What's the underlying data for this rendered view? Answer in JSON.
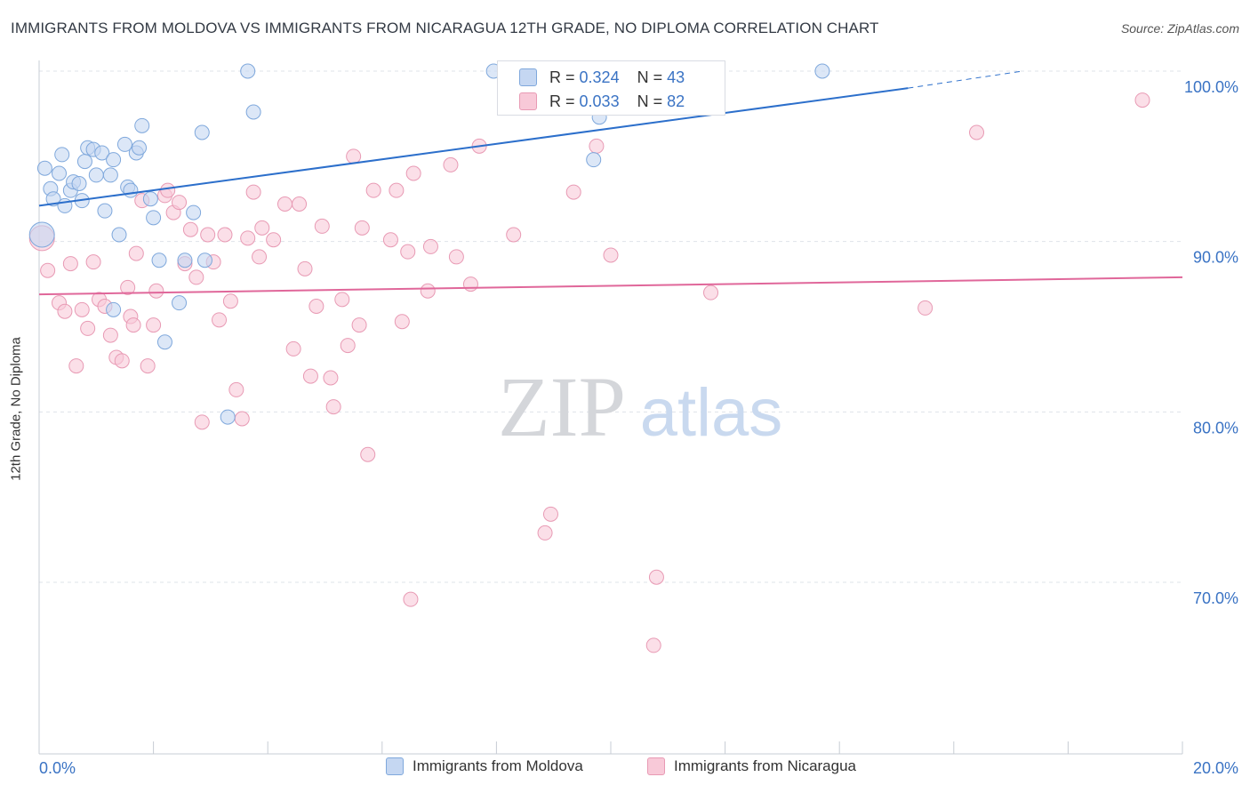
{
  "header": {
    "title": "IMMIGRANTS FROM MOLDOVA VS IMMIGRANTS FROM NICARAGUA 12TH GRADE, NO DIPLOMA CORRELATION CHART",
    "source": "Source: ZipAtlas.com"
  },
  "watermark": {
    "zip": "ZIP",
    "atlas": "atlas"
  },
  "stats_legend": [
    {
      "r_label": "R =",
      "r_value": "0.324",
      "n_label": "N =",
      "n_value": "43"
    },
    {
      "r_label": "R =",
      "r_value": "0.033",
      "n_label": "N =",
      "n_value": "82"
    }
  ],
  "colors": {
    "moldova_fill": "#c5d7f2",
    "moldova_stroke": "#7fa8dc",
    "moldova_line": "#2c6fcb",
    "nicaragua_fill": "#f8c9d8",
    "nicaragua_stroke": "#e89ab4",
    "nicaragua_line": "#e0679a",
    "axis_label": "#3a73c4",
    "grid": "#dfe3ea"
  },
  "chart_data": {
    "type": "scatter",
    "title": "IMMIGRANTS FROM MOLDOVA VS IMMIGRANTS FROM NICARAGUA 12TH GRADE, NO DIPLOMA CORRELATION CHART",
    "xlabel": "",
    "ylabel": "12th Grade, No Diploma",
    "xlim": [
      0,
      20
    ],
    "ylim": [
      60,
      101.5
    ],
    "x_tick_labels": [
      "0.0%",
      "20.0%"
    ],
    "y_ticks": [
      70,
      80,
      90,
      100
    ],
    "y_tick_labels": [
      "70.0%",
      "80.0%",
      "90.0%",
      "100.0%"
    ],
    "legend_position": "bottom",
    "series": [
      {
        "name": "Immigrants from Moldova",
        "r": 0.324,
        "n": 43,
        "trend": {
          "x0": 0,
          "y0": 92.1,
          "x1": 15.2,
          "y1": 99.0,
          "dash_to_x": 17.2,
          "dash_to_y": 100.0
        },
        "points": [
          [
            0.05,
            90.4
          ],
          [
            0.1,
            94.3
          ],
          [
            0.2,
            93.1
          ],
          [
            0.25,
            92.5
          ],
          [
            0.35,
            94.0
          ],
          [
            0.4,
            95.1
          ],
          [
            0.45,
            92.1
          ],
          [
            0.55,
            93.0
          ],
          [
            0.6,
            93.5
          ],
          [
            0.7,
            93.4
          ],
          [
            0.75,
            92.4
          ],
          [
            0.8,
            94.7
          ],
          [
            0.85,
            95.5
          ],
          [
            0.95,
            95.4
          ],
          [
            1.0,
            93.9
          ],
          [
            1.1,
            95.2
          ],
          [
            1.15,
            91.8
          ],
          [
            1.25,
            93.9
          ],
          [
            1.3,
            94.8
          ],
          [
            1.4,
            90.4
          ],
          [
            1.5,
            95.7
          ],
          [
            1.55,
            93.2
          ],
          [
            1.6,
            93.0
          ],
          [
            1.7,
            95.2
          ],
          [
            1.75,
            95.5
          ],
          [
            1.8,
            96.8
          ],
          [
            1.95,
            92.5
          ],
          [
            2.0,
            91.4
          ],
          [
            2.1,
            88.9
          ],
          [
            2.2,
            84.1
          ],
          [
            2.45,
            86.4
          ],
          [
            2.55,
            88.9
          ],
          [
            2.7,
            91.7
          ],
          [
            2.85,
            96.4
          ],
          [
            2.9,
            88.9
          ],
          [
            3.3,
            79.7
          ],
          [
            3.65,
            100.0
          ],
          [
            3.75,
            97.6
          ],
          [
            1.3,
            86.0
          ],
          [
            7.95,
            100.0
          ],
          [
            9.8,
            97.3
          ],
          [
            9.7,
            94.8
          ],
          [
            13.7,
            100.0
          ]
        ]
      },
      {
        "name": "Immigrants from Nicaragua",
        "r": 0.033,
        "n": 82,
        "trend": {
          "x0": 0,
          "y0": 86.9,
          "x1": 20,
          "y1": 87.9
        },
        "points": [
          [
            0.05,
            90.2
          ],
          [
            0.15,
            88.3
          ],
          [
            0.35,
            86.4
          ],
          [
            0.45,
            85.9
          ],
          [
            0.55,
            88.7
          ],
          [
            0.65,
            82.7
          ],
          [
            0.75,
            86.0
          ],
          [
            0.85,
            84.9
          ],
          [
            0.95,
            88.8
          ],
          [
            1.05,
            86.6
          ],
          [
            1.15,
            86.2
          ],
          [
            1.25,
            84.5
          ],
          [
            1.35,
            83.2
          ],
          [
            1.45,
            83.0
          ],
          [
            1.55,
            87.3
          ],
          [
            1.6,
            85.6
          ],
          [
            1.7,
            89.3
          ],
          [
            1.8,
            92.4
          ],
          [
            1.9,
            82.7
          ],
          [
            2.0,
            85.1
          ],
          [
            2.05,
            87.1
          ],
          [
            2.2,
            92.7
          ],
          [
            2.25,
            93.0
          ],
          [
            2.35,
            91.7
          ],
          [
            2.45,
            92.3
          ],
          [
            2.55,
            88.7
          ],
          [
            2.65,
            90.7
          ],
          [
            2.75,
            87.9
          ],
          [
            2.85,
            79.4
          ],
          [
            2.95,
            90.4
          ],
          [
            3.05,
            88.8
          ],
          [
            3.15,
            85.4
          ],
          [
            3.25,
            90.4
          ],
          [
            3.35,
            86.5
          ],
          [
            3.45,
            81.3
          ],
          [
            3.55,
            79.6
          ],
          [
            3.65,
            90.2
          ],
          [
            3.75,
            92.9
          ],
          [
            3.85,
            89.1
          ],
          [
            3.9,
            90.8
          ],
          [
            4.1,
            90.1
          ],
          [
            4.3,
            92.2
          ],
          [
            4.45,
            83.7
          ],
          [
            4.55,
            92.2
          ],
          [
            4.65,
            88.4
          ],
          [
            4.75,
            82.1
          ],
          [
            4.85,
            86.2
          ],
          [
            4.95,
            90.9
          ],
          [
            5.1,
            82.0
          ],
          [
            5.15,
            80.3
          ],
          [
            5.3,
            86.6
          ],
          [
            5.4,
            83.9
          ],
          [
            5.5,
            95.0
          ],
          [
            5.6,
            85.1
          ],
          [
            5.65,
            90.8
          ],
          [
            5.75,
            77.5
          ],
          [
            5.85,
            93.0
          ],
          [
            6.15,
            90.1
          ],
          [
            6.25,
            93.0
          ],
          [
            6.35,
            85.3
          ],
          [
            6.45,
            89.4
          ],
          [
            6.5,
            69.0
          ],
          [
            6.55,
            94.0
          ],
          [
            6.8,
            87.1
          ],
          [
            6.85,
            89.7
          ],
          [
            7.2,
            94.5
          ],
          [
            7.3,
            89.1
          ],
          [
            7.55,
            87.5
          ],
          [
            7.7,
            95.6
          ],
          [
            8.3,
            90.4
          ],
          [
            8.85,
            72.9
          ],
          [
            8.95,
            74.0
          ],
          [
            9.35,
            92.9
          ],
          [
            9.75,
            95.6
          ],
          [
            10.0,
            89.2
          ],
          [
            10.75,
            66.3
          ],
          [
            10.8,
            70.3
          ],
          [
            11.75,
            87.0
          ],
          [
            15.5,
            86.1
          ],
          [
            16.4,
            96.4
          ],
          [
            19.3,
            98.3
          ],
          [
            1.65,
            85.1
          ]
        ]
      }
    ]
  },
  "legend": {
    "moldova": "Immigrants from Moldova",
    "nicaragua": "Immigrants from Nicaragua"
  }
}
